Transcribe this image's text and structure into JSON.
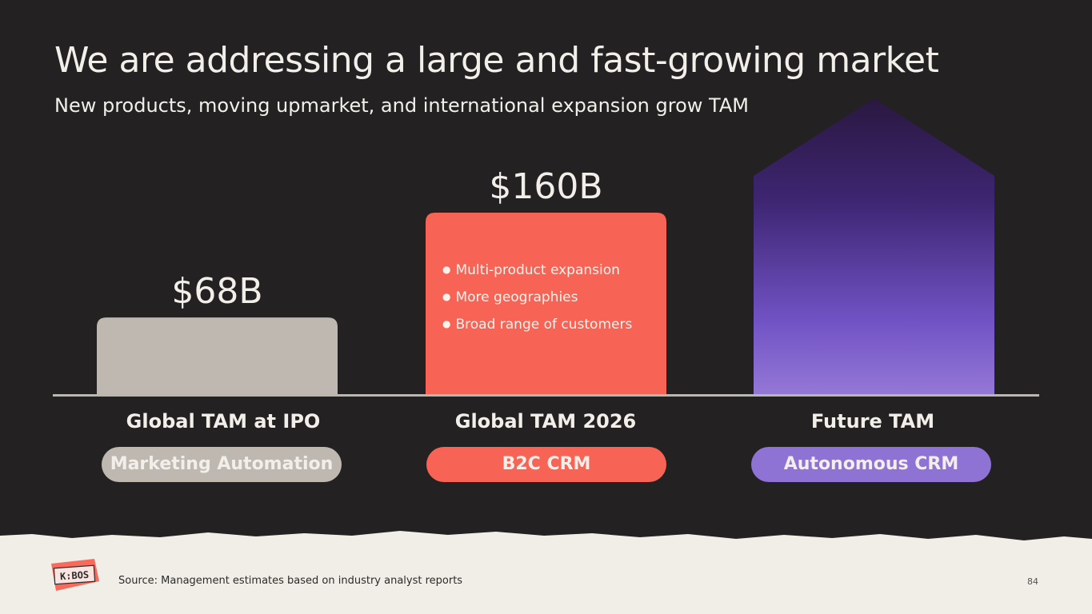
{
  "slide": {
    "title": "We are addressing a large and fast-growing market",
    "subtitle": "New products, moving upmarket, and international expansion grow TAM",
    "source": "Source: Management estimates based on industry analyst reports",
    "page_number": "84",
    "logo_text": "K:BOS"
  },
  "chart_data": {
    "type": "bar",
    "categories": [
      "Global TAM at IPO",
      "Global TAM 2026",
      "Future TAM"
    ],
    "values": [
      68,
      160,
      null
    ],
    "value_labels": [
      "$68B",
      "$160B",
      ""
    ],
    "pills": [
      "Marketing Automation",
      "B2C CRM",
      "Autonomous CRM"
    ],
    "colors": [
      "#bfb8b1",
      "#f76354",
      "#8e72d4"
    ],
    "bullets": [
      "Multi-product expansion",
      "More geographies",
      "Broad range of customers"
    ]
  }
}
